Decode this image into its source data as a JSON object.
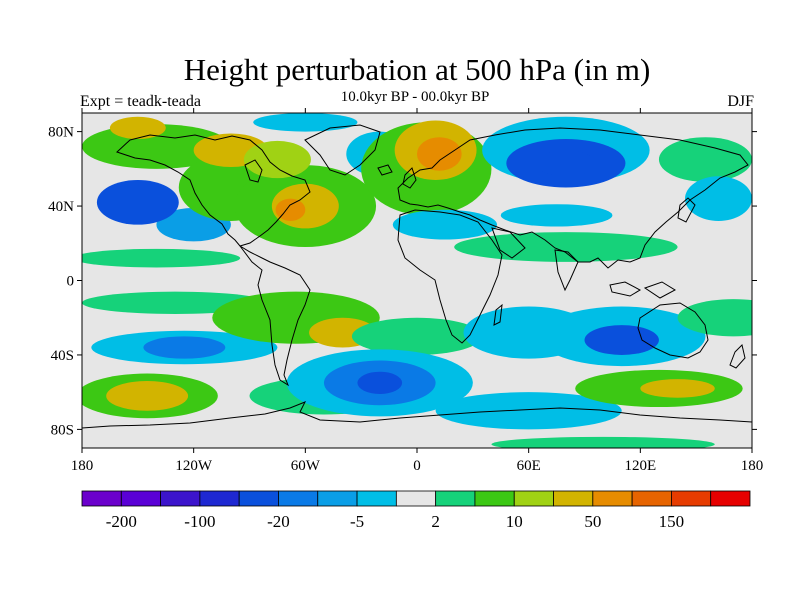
{
  "title": "Height perturbation at 500 hPa (in m)",
  "subtitle": "10.0kyr BP - 00.0kyr BP",
  "left_label": "Expt = teadk-teada",
  "right_label": "DJF",
  "map": {
    "lon_range": [
      -180,
      180
    ],
    "lat_range": [
      -90,
      90
    ],
    "lat_ticks": [
      {
        "value": 80,
        "label": "80N"
      },
      {
        "value": 40,
        "label": "40N"
      },
      {
        "value": 0,
        "label": "0"
      },
      {
        "value": -40,
        "label": "40S"
      },
      {
        "value": -80,
        "label": "80S"
      }
    ],
    "lon_ticks": [
      {
        "value": -180,
        "label": "180"
      },
      {
        "value": -120,
        "label": "120W"
      },
      {
        "value": -60,
        "label": "60W"
      },
      {
        "value": 0,
        "label": "0"
      },
      {
        "value": 60,
        "label": "60E"
      },
      {
        "value": 120,
        "label": "120E"
      },
      {
        "value": 180,
        "label": "180"
      }
    ],
    "background_color": "#e6e6e6",
    "features": [
      {
        "lon": -120,
        "lat": 30,
        "rx": 20,
        "ry": 9,
        "value": -8
      },
      {
        "lon": -150,
        "lat": 42,
        "rx": 22,
        "ry": 12,
        "value": -40
      },
      {
        "lon": -140,
        "lat": 72,
        "rx": 40,
        "ry": 12,
        "value": 5
      },
      {
        "lon": -150,
        "lat": 82,
        "rx": 15,
        "ry": 6,
        "value": 20
      },
      {
        "lon": -100,
        "lat": 50,
        "rx": 28,
        "ry": 18,
        "value": 5
      },
      {
        "lon": -100,
        "lat": 70,
        "rx": 20,
        "ry": 9,
        "value": 25
      },
      {
        "lon": -60,
        "lat": 40,
        "rx": 38,
        "ry": 22,
        "value": 5
      },
      {
        "lon": -60,
        "lat": 40,
        "rx": 18,
        "ry": 12,
        "value": 25
      },
      {
        "lon": -68,
        "lat": 38,
        "rx": 8,
        "ry": 6,
        "value": 50
      },
      {
        "lon": -75,
        "lat": 65,
        "rx": 18,
        "ry": 10,
        "value": 15
      },
      {
        "lon": -60,
        "lat": 85,
        "rx": 28,
        "ry": 5,
        "value": -4
      },
      {
        "lon": -20,
        "lat": 68,
        "rx": 18,
        "ry": 12,
        "value": -4
      },
      {
        "lon": 5,
        "lat": 60,
        "rx": 35,
        "ry": 25,
        "value": 5
      },
      {
        "lon": 10,
        "lat": 70,
        "rx": 22,
        "ry": 16,
        "value": 25
      },
      {
        "lon": 12,
        "lat": 68,
        "rx": 12,
        "ry": 9,
        "value": 50
      },
      {
        "lon": 15,
        "lat": 30,
        "rx": 28,
        "ry": 8,
        "value": -4
      },
      {
        "lon": 80,
        "lat": 70,
        "rx": 45,
        "ry": 18,
        "value": -4
      },
      {
        "lon": 80,
        "lat": 63,
        "rx": 32,
        "ry": 13,
        "value": -30
      },
      {
        "lon": 80,
        "lat": 63,
        "rx": 16,
        "ry": 7,
        "value": -60
      },
      {
        "lon": 155,
        "lat": 65,
        "rx": 25,
        "ry": 12,
        "value": 4
      },
      {
        "lon": 162,
        "lat": 44,
        "rx": 18,
        "ry": 12,
        "value": -4
      },
      {
        "lon": 75,
        "lat": 35,
        "rx": 30,
        "ry": 6,
        "value": -4
      },
      {
        "lon": 80,
        "lat": 18,
        "rx": 60,
        "ry": 8,
        "value": 4
      },
      {
        "lon": -140,
        "lat": 12,
        "rx": 45,
        "ry": 5,
        "value": 4
      },
      {
        "lon": -130,
        "lat": -12,
        "rx": 50,
        "ry": 6,
        "value": 4
      },
      {
        "lon": -125,
        "lat": -36,
        "rx": 50,
        "ry": 9,
        "value": -4
      },
      {
        "lon": -125,
        "lat": -36,
        "rx": 22,
        "ry": 6,
        "value": -20
      },
      {
        "lon": -65,
        "lat": -20,
        "rx": 45,
        "ry": 14,
        "value": 5
      },
      {
        "lon": -40,
        "lat": -28,
        "rx": 18,
        "ry": 8,
        "value": 20
      },
      {
        "lon": 0,
        "lat": -30,
        "rx": 35,
        "ry": 10,
        "value": 4
      },
      {
        "lon": 60,
        "lat": -28,
        "rx": 35,
        "ry": 14,
        "value": -4
      },
      {
        "lon": 110,
        "lat": -30,
        "rx": 45,
        "ry": 16,
        "value": -4
      },
      {
        "lon": 110,
        "lat": -32,
        "rx": 20,
        "ry": 8,
        "value": -25
      },
      {
        "lon": 170,
        "lat": -20,
        "rx": 30,
        "ry": 10,
        "value": 4
      },
      {
        "lon": -145,
        "lat": -62,
        "rx": 38,
        "ry": 12,
        "value": 5
      },
      {
        "lon": -145,
        "lat": -62,
        "rx": 22,
        "ry": 8,
        "value": 25
      },
      {
        "lon": -50,
        "lat": -62,
        "rx": 40,
        "ry": 10,
        "value": 4
      },
      {
        "lon": -20,
        "lat": -55,
        "rx": 50,
        "ry": 18,
        "value": -4
      },
      {
        "lon": -20,
        "lat": -55,
        "rx": 30,
        "ry": 12,
        "value": -20
      },
      {
        "lon": -20,
        "lat": -55,
        "rx": 12,
        "ry": 6,
        "value": -60
      },
      {
        "lon": 60,
        "lat": -70,
        "rx": 50,
        "ry": 10,
        "value": -4
      },
      {
        "lon": 130,
        "lat": -58,
        "rx": 45,
        "ry": 10,
        "value": 5
      },
      {
        "lon": 140,
        "lat": -58,
        "rx": 20,
        "ry": 5,
        "value": 25
      },
      {
        "lon": 100,
        "lat": -88,
        "rx": 60,
        "ry": 4,
        "value": 4
      }
    ]
  },
  "colorbar": {
    "bins": [
      {
        "color": "#6b00cc"
      },
      {
        "color": "#5a00d6"
      },
      {
        "color": "#3c14cc"
      },
      {
        "color": "#1e28d2"
      },
      {
        "color": "#0a50dc"
      },
      {
        "color": "#0a7ae6"
      },
      {
        "color": "#0a9ee6"
      },
      {
        "color": "#00bee6"
      },
      {
        "color": "#e6e6e6"
      },
      {
        "color": "#16d27a"
      },
      {
        "color": "#3cc814"
      },
      {
        "color": "#a0d214"
      },
      {
        "color": "#d2b400"
      },
      {
        "color": "#e68c00"
      },
      {
        "color": "#e66400"
      },
      {
        "color": "#e63c00"
      },
      {
        "color": "#e60000"
      }
    ],
    "labels": [
      {
        "text": "-200",
        "boundary": 1
      },
      {
        "text": "-100",
        "boundary": 3
      },
      {
        "text": "-20",
        "boundary": 5
      },
      {
        "text": "-5",
        "boundary": 7
      },
      {
        "text": "2",
        "boundary": 9
      },
      {
        "text": "10",
        "boundary": 11
      },
      {
        "text": "50",
        "boundary": 13
      },
      {
        "text": "150",
        "boundary": 15
      }
    ],
    "levels": [
      -200,
      -150,
      -100,
      -60,
      -20,
      -10,
      -5,
      -2,
      2,
      5,
      10,
      20,
      50,
      100,
      150,
      200
    ]
  }
}
